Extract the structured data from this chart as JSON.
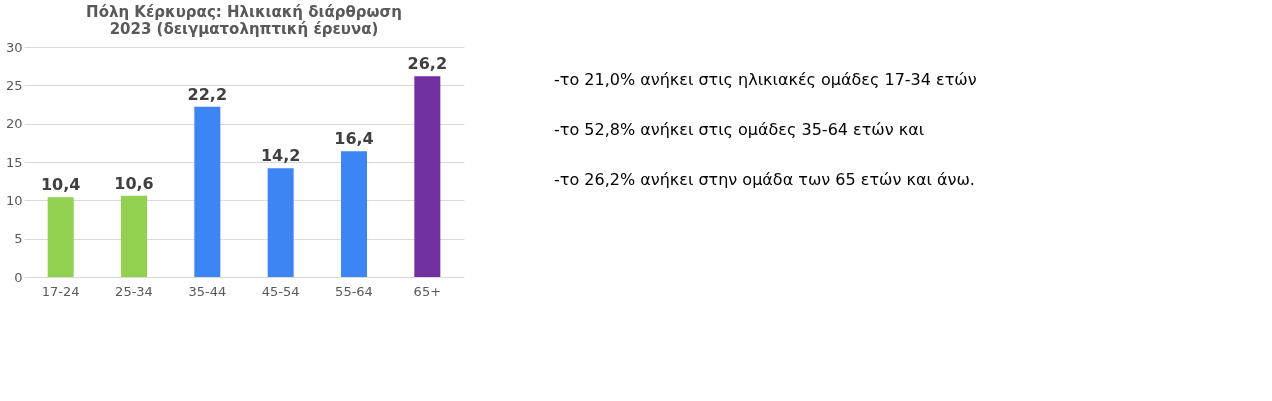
{
  "chart_data": {
    "type": "bar",
    "title": "Πόλη Κέρκυρας: Ηλικιακή διάρθρωση 2023 (δειγματοληπτική έρευνα)",
    "categories": [
      "17-24",
      "25-34",
      "35-44",
      "45-54",
      "55-64",
      "65+"
    ],
    "values": [
      10.4,
      10.6,
      22.2,
      14.2,
      16.4,
      26.2
    ],
    "colors": [
      "#92d050",
      "#92d050",
      "#3d85f5",
      "#3d85f5",
      "#3d85f5",
      "#7030a0"
    ],
    "value_labels": [
      "10,4",
      "10,6",
      "22,2",
      "14,2",
      "16,4",
      "26,2"
    ],
    "ylim": [
      0,
      30
    ],
    "yticks": [
      0,
      5,
      10,
      15,
      20,
      25,
      30
    ],
    "grid": "y",
    "legend": false,
    "annotations": [
      "-το 21,0% ανήκει στις ηλικιακές ομάδες 17-34 ετών",
      "-το 52,8% ανήκει στις ομάδες 35-64 ετών και",
      "-το 26,2% ανήκει στην ομάδα των 65 ετών και άνω."
    ]
  }
}
